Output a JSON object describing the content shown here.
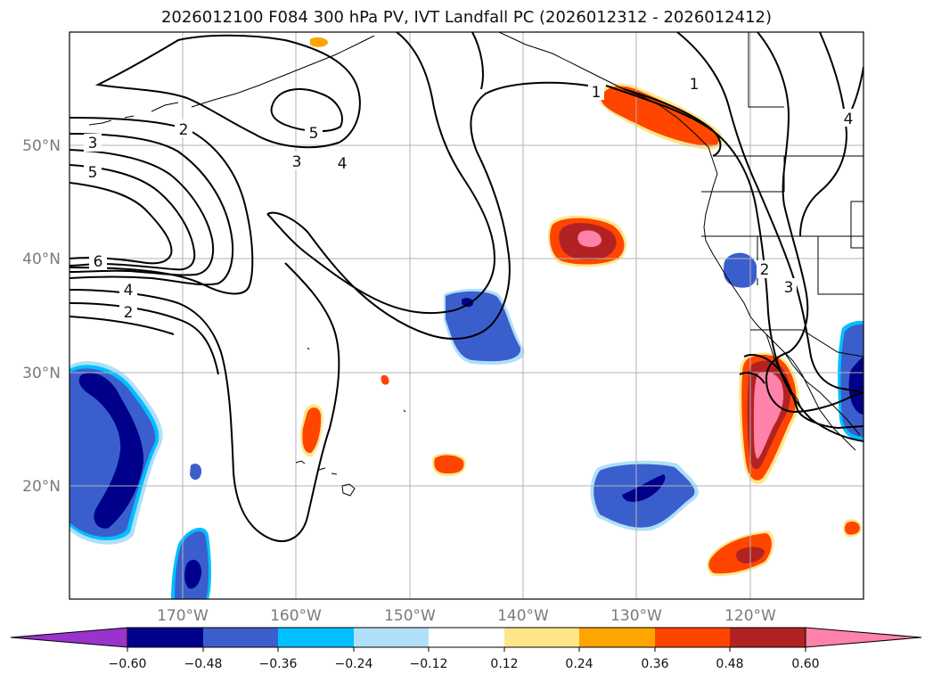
{
  "title": "2026012100 F084 300 hPa PV, IVT Landfall PC (2026012312 - 2026012412)",
  "lat_labels": [
    "50°N",
    "40°N",
    "30°N",
    "20°N"
  ],
  "lon_labels": [
    "170°W",
    "160°W",
    "150°W",
    "140°W",
    "130°W",
    "120°W"
  ],
  "pv_contour_labels": [
    "3",
    "5",
    "2",
    "5",
    "3",
    "4",
    "1",
    "1",
    "4",
    "6",
    "4",
    "2",
    "2",
    "3"
  ],
  "colorbar": {
    "tick_labels": [
      "−0.60",
      "−0.48",
      "−0.36",
      "−0.24",
      "−0.12",
      "0.12",
      "0.24",
      "0.36",
      "0.48",
      "0.60"
    ],
    "colors": [
      "#9933cc",
      "#00008b",
      "#3a5fcd",
      "#00bfff",
      "#afe0f8",
      "#ffffff",
      "#fde68a",
      "#ffa500",
      "#ff4500",
      "#b22222",
      "#ff82ab",
      "#ff82ab"
    ]
  },
  "colors": {
    "pos_light": "#fde68a",
    "pos_orange": "#ffa500",
    "pos_red": "#ff4500",
    "pos_dark": "#b22222",
    "pos_pink": "#ff82ab",
    "neg_light": "#afe0f8",
    "neg_cyan": "#00bfff",
    "neg_blue": "#3a5fcd",
    "neg_navy": "#00008b",
    "grid": "#b3b3b3"
  }
}
